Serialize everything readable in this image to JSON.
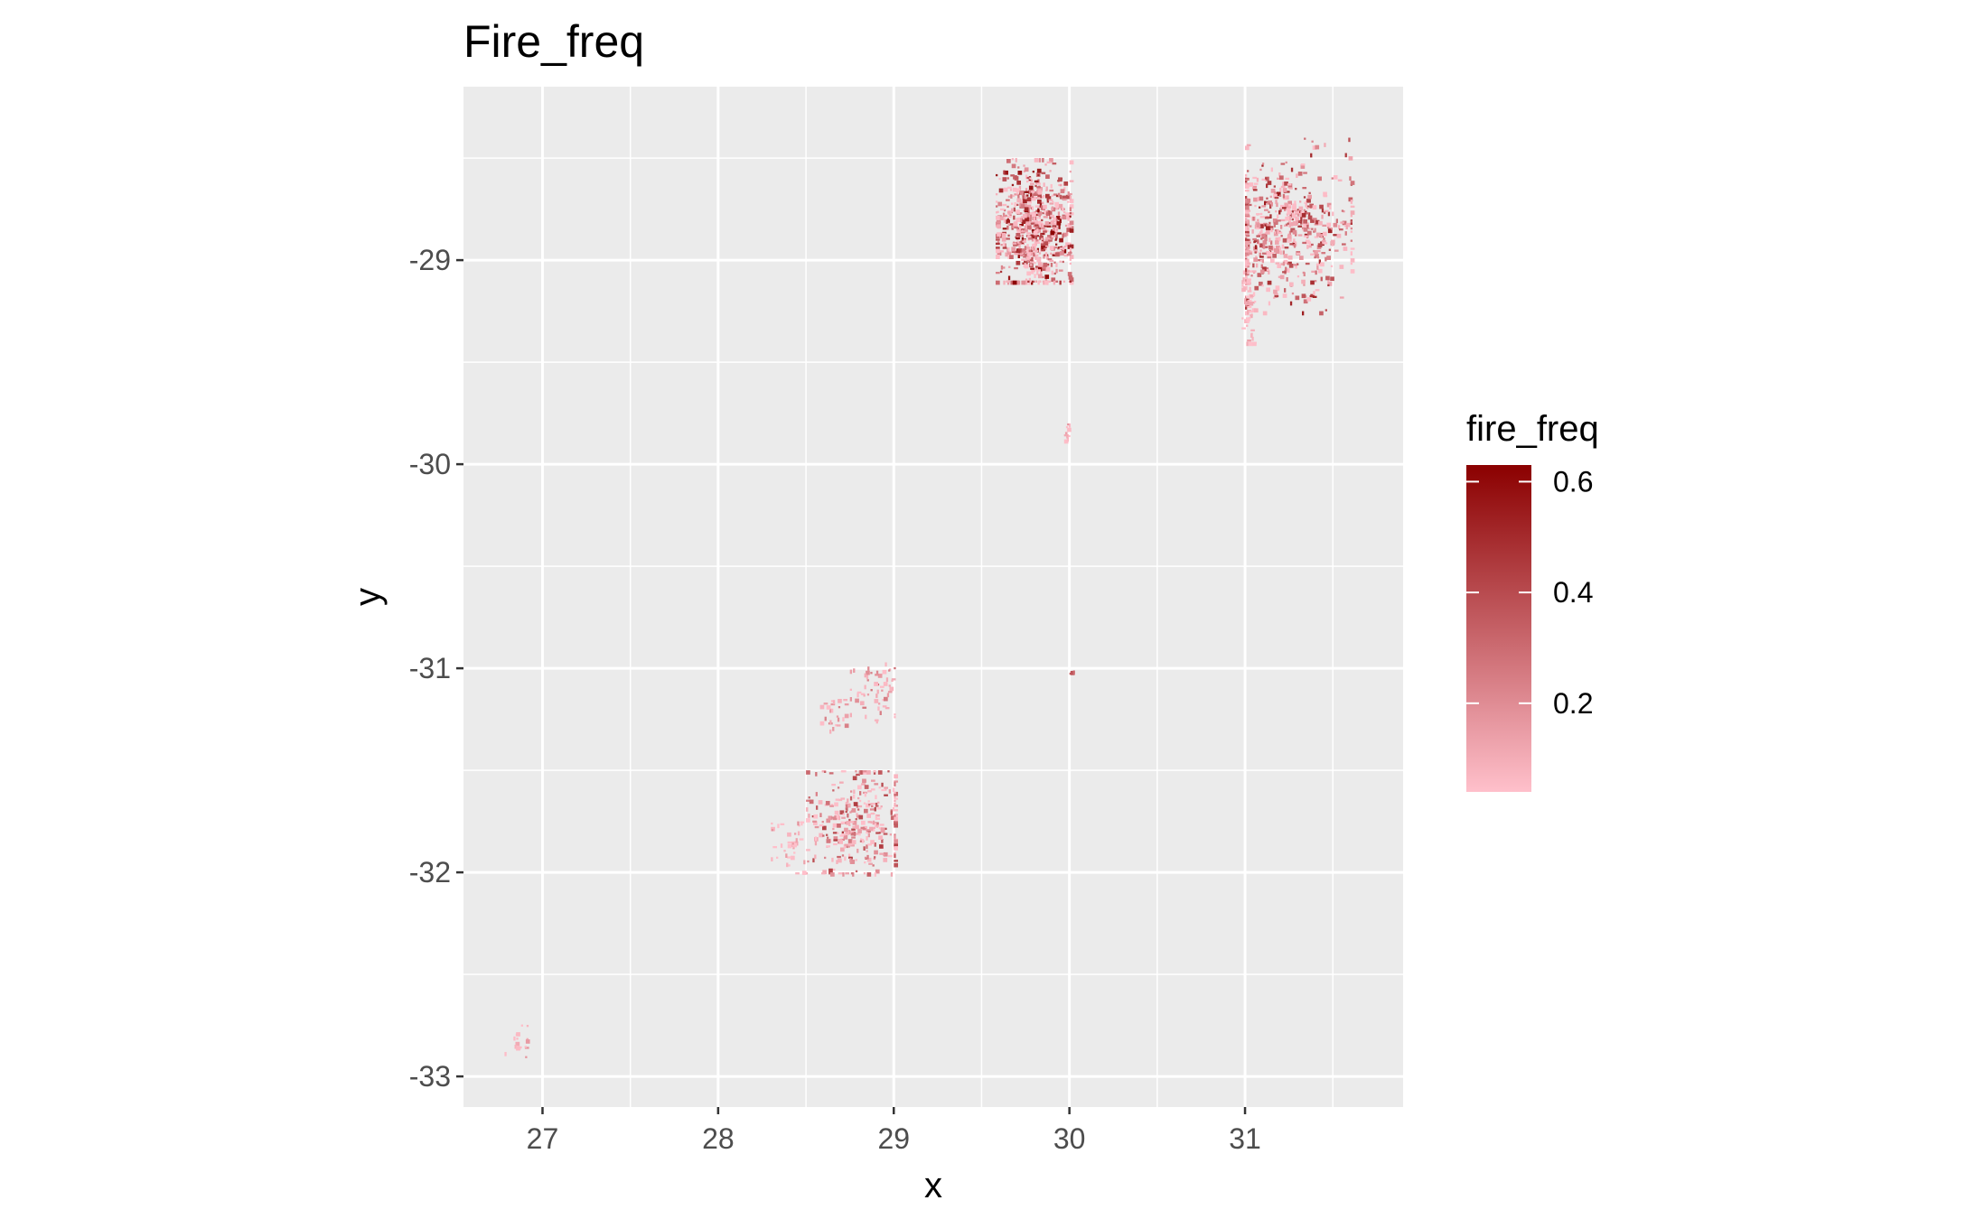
{
  "chart_data": {
    "type": "heatmap",
    "title": "Fire_freq",
    "xlabel": "x",
    "ylabel": "y",
    "xlim": [
      26.55,
      31.9
    ],
    "ylim": [
      -33.15,
      -28.15
    ],
    "x_ticks": [
      27,
      28,
      29,
      30,
      31
    ],
    "x_tick_labels": [
      "27",
      "28",
      "29",
      "30",
      "31"
    ],
    "y_ticks": [
      -29,
      -30,
      -31,
      -32,
      -33
    ],
    "y_tick_labels": [
      "-29",
      "-30",
      "-31",
      "-32",
      "-33"
    ],
    "x_minor": [
      27.5,
      28.5,
      29.5,
      30.5,
      31.5
    ],
    "y_minor": [
      -28.5,
      -29.5,
      -30.5,
      -31.5,
      -32.5
    ],
    "grid": true,
    "legend": {
      "title": "fire_freq",
      "position": "right",
      "min": 0.04,
      "max": 0.63,
      "ticks": [
        0.2,
        0.4,
        0.6
      ],
      "tick_labels": [
        "0.2",
        "0.4",
        "0.6"
      ],
      "low_color": "#ffc0cb",
      "high_color": "#8b0000"
    },
    "colors": {
      "panel": "#ebebeb",
      "grid": "#ffffff"
    },
    "clusters": [
      {
        "cx": 29.8,
        "cy": -28.85,
        "sx": 0.12,
        "sy": 0.16,
        "n": 700,
        "vmin": 0.05,
        "vmax": 0.62,
        "xmin": 29.58,
        "xmax": 30.0,
        "ymin": -29.1,
        "ymax": -28.5
      },
      {
        "cx": 31.2,
        "cy": -28.85,
        "sx": 0.2,
        "sy": 0.16,
        "n": 620,
        "vmin": 0.05,
        "vmax": 0.55,
        "xmin": 31.0,
        "xmax": 31.6,
        "ymin": -29.25,
        "ymax": -28.4
      },
      {
        "cx": 31.01,
        "cy": -29.2,
        "sx": 0.02,
        "sy": 0.12,
        "n": 50,
        "vmin": 0.04,
        "vmax": 0.15,
        "xmin": 30.98,
        "xmax": 31.06,
        "ymin": -29.4,
        "ymax": -29.05
      },
      {
        "cx": 29.98,
        "cy": -29.85,
        "sx": 0.01,
        "sy": 0.05,
        "n": 12,
        "vmin": 0.05,
        "vmax": 0.2,
        "xmin": 29.95,
        "xmax": 30.0,
        "ymin": -29.95,
        "ymax": -29.8
      },
      {
        "cx": 30.01,
        "cy": -31.02,
        "sx": 0.01,
        "sy": 0.01,
        "n": 4,
        "vmin": 0.2,
        "vmax": 0.4,
        "xmin": 30.0,
        "xmax": 30.02,
        "ymin": -31.04,
        "ymax": -31.0
      },
      {
        "cx": 28.88,
        "cy": -31.1,
        "sx": 0.08,
        "sy": 0.08,
        "n": 60,
        "vmin": 0.05,
        "vmax": 0.3,
        "xmin": 28.75,
        "xmax": 29.0,
        "ymin": -31.25,
        "ymax": -30.95
      },
      {
        "cx": 28.65,
        "cy": -31.22,
        "sx": 0.04,
        "sy": 0.05,
        "n": 25,
        "vmin": 0.05,
        "vmax": 0.25,
        "xmin": 28.58,
        "xmax": 28.72,
        "ymin": -31.3,
        "ymax": -31.15
      },
      {
        "cx": 28.8,
        "cy": -31.75,
        "sx": 0.15,
        "sy": 0.14,
        "n": 320,
        "vmin": 0.04,
        "vmax": 0.45,
        "xmin": 28.5,
        "xmax": 29.0,
        "ymin": -32.0,
        "ymax": -31.5
      },
      {
        "cx": 28.42,
        "cy": -31.85,
        "sx": 0.07,
        "sy": 0.07,
        "n": 40,
        "vmin": 0.04,
        "vmax": 0.2,
        "xmin": 28.3,
        "xmax": 28.55,
        "ymin": -32.0,
        "ymax": -31.75
      },
      {
        "cx": 26.87,
        "cy": -32.82,
        "sx": 0.04,
        "sy": 0.05,
        "n": 18,
        "vmin": 0.04,
        "vmax": 0.2,
        "xmin": 26.78,
        "xmax": 27.0,
        "ymin": -32.95,
        "ymax": -32.72
      }
    ]
  }
}
